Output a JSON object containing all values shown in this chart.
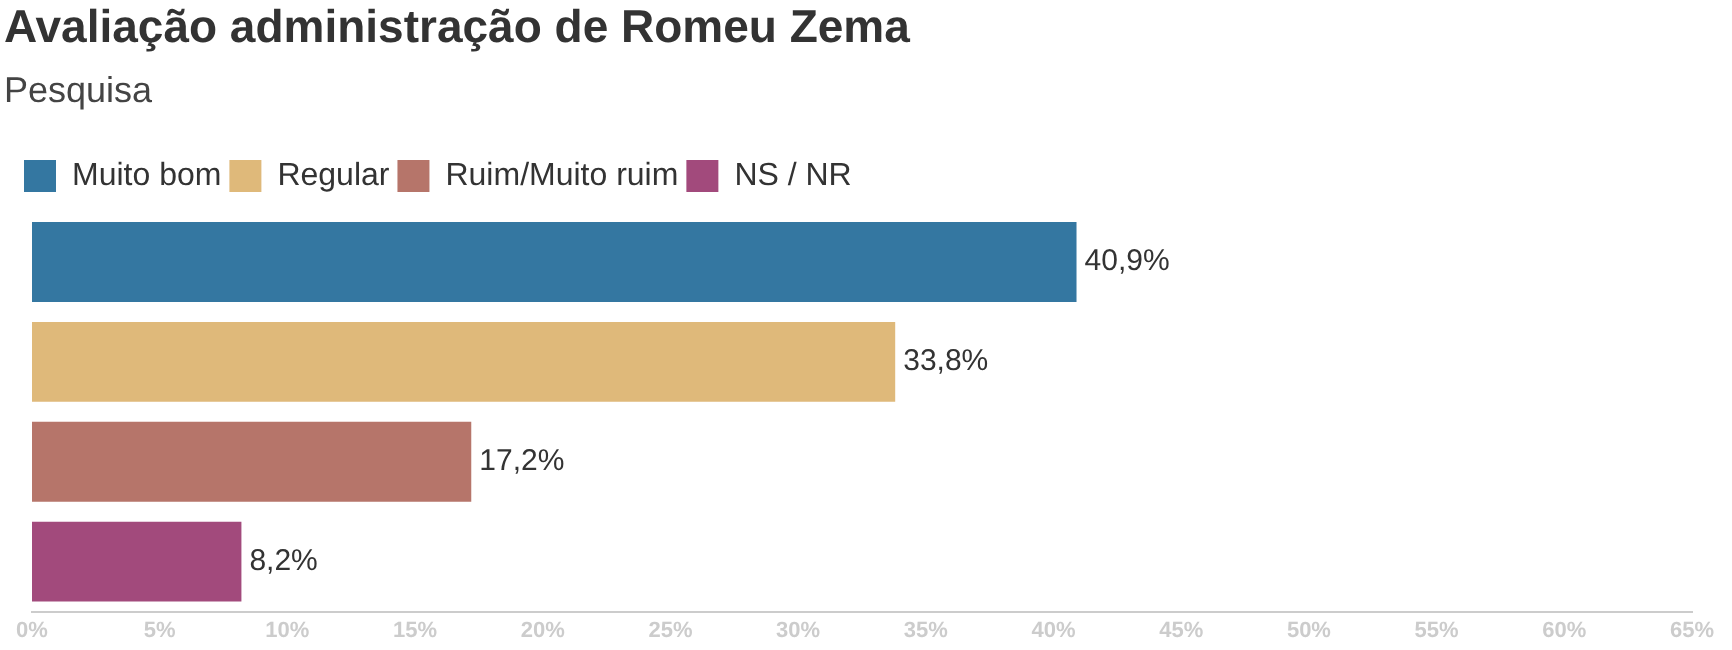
{
  "chart_data": {
    "type": "bar",
    "orientation": "horizontal",
    "stacked": true,
    "title": "Avaliação administração de Romeu Zema",
    "subtitle": "Pesquisa",
    "categories": [
      null,
      null,
      null,
      null
    ],
    "series": [
      {
        "name": "Muito bom",
        "color": "#3477a1",
        "values": [
          40.9,
          null,
          null,
          null
        ],
        "value_labels": [
          "40,9%",
          null,
          null,
          null
        ]
      },
      {
        "name": "Regular",
        "color": "#dfb97a",
        "values": [
          null,
          33.8,
          null,
          null
        ],
        "value_labels": [
          null,
          "33,8%",
          null,
          null
        ]
      },
      {
        "name": "Ruim/Muito ruim",
        "color": "#b6756a",
        "values": [
          null,
          null,
          17.2,
          null
        ],
        "value_labels": [
          null,
          null,
          "17,2%",
          null
        ]
      },
      {
        "name": "NS / NR",
        "color": "#a24a7c",
        "values": [
          null,
          null,
          null,
          8.2
        ],
        "value_labels": [
          null,
          null,
          null,
          "8,2%"
        ]
      }
    ],
    "xlim": [
      0,
      65
    ],
    "xticks": [
      {
        "value": 0,
        "label": "0%"
      },
      {
        "value": 5,
        "label": "5%"
      },
      {
        "value": 10,
        "label": "10%"
      },
      {
        "value": 15,
        "label": "15%"
      },
      {
        "value": 20,
        "label": "20%"
      },
      {
        "value": 25,
        "label": "25%"
      },
      {
        "value": 30,
        "label": "30%"
      },
      {
        "value": 35,
        "label": "35%"
      },
      {
        "value": 40,
        "label": "40%"
      },
      {
        "value": 45,
        "label": "45%"
      },
      {
        "value": 50,
        "label": "50%"
      },
      {
        "value": 55,
        "label": "55%"
      },
      {
        "value": 60,
        "label": "60%"
      },
      {
        "value": 65,
        "label": "65%"
      }
    ],
    "grid": false,
    "legend": "top left"
  }
}
